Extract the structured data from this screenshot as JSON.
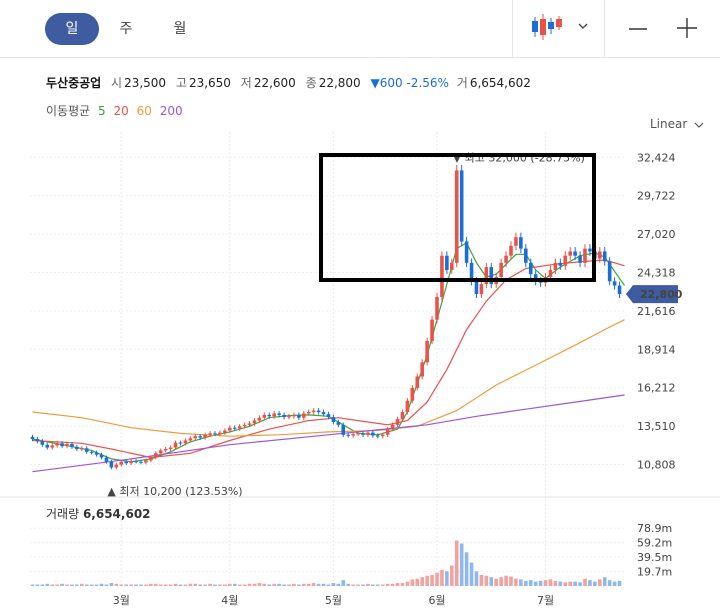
{
  "tabs": [
    {
      "label": "일",
      "active": true
    },
    {
      "label": "주",
      "active": false
    },
    {
      "label": "월",
      "active": false
    }
  ],
  "toolbar": {
    "chart_type_icon": "candlestick-icon",
    "dropdown_icon": "chevron-down-icon",
    "zoom_out_icon": "minus-icon",
    "zoom_in_icon": "plus-icon"
  },
  "stock": {
    "name": "두산중공업",
    "open_label": "시",
    "open": "23,500",
    "high_label": "고",
    "high": "23,650",
    "low_label": "저",
    "low": "22,600",
    "close_label": "종",
    "close": "22,800",
    "change": "▼600 -2.56%",
    "volume_label": "거",
    "volume": "6,654,602"
  },
  "ma_legend": {
    "label": "이동평균",
    "items": [
      {
        "name": "5",
        "color": "#3aa53a"
      },
      {
        "name": "20",
        "color": "#e8534a"
      },
      {
        "name": "60",
        "color": "#f39a3e"
      },
      {
        "name": "200",
        "color": "#9b57e0"
      }
    ]
  },
  "scale": {
    "label": "Linear",
    "icon": "chevron-down-icon"
  },
  "colors": {
    "up": "#e8534a",
    "down": "#1a6ed8",
    "accent": "#3e5c9f",
    "highlight": "#000000"
  },
  "chart_data": {
    "type": "candlestick",
    "ylim": [
      10000,
      33500
    ],
    "y_ticks": [
      "32,424",
      "29,722",
      "27,020",
      "24,318",
      "21,616",
      "18,914",
      "16,212",
      "13,510",
      "10,808"
    ],
    "y_tick_values": [
      32424,
      29722,
      27020,
      24318,
      21616,
      18914,
      16212,
      13510,
      10808
    ],
    "current_price_label": "22,800",
    "current_price": 22800,
    "x_labels": [
      "3월",
      "4월",
      "5월",
      "6월",
      "7월"
    ],
    "x_label_index": [
      18,
      40,
      61,
      82,
      104
    ],
    "max_annotation": "▼ 최고 32,000 (-28.75%)",
    "max_index": 86,
    "max_value": 32000,
    "min_annotation": "▲ 최저 10,200 (123.53%)",
    "min_index": 16,
    "min_value": 10200,
    "closes": [
      12600,
      12450,
      12200,
      12000,
      12150,
      12300,
      12100,
      12250,
      12050,
      11900,
      11950,
      11700,
      11650,
      11500,
      11300,
      11000,
      10600,
      10800,
      11000,
      10900,
      11050,
      11000,
      10950,
      11100,
      11300,
      11600,
      11800,
      11900,
      12000,
      12350,
      12300,
      12500,
      12650,
      12800,
      12700,
      12900,
      13000,
      12950,
      13050,
      13200,
      13400,
      13350,
      13500,
      13600,
      13700,
      13900,
      14100,
      14300,
      14200,
      14400,
      14300,
      14150,
      14200,
      14300,
      14100,
      14400,
      14500,
      14600,
      14500,
      14350,
      14150,
      13800,
      13600,
      12900,
      12850,
      12950,
      13000,
      12900,
      13050,
      12850,
      12800,
      12900,
      13300,
      13600,
      14000,
      14500,
      15300,
      16200,
      17000,
      18000,
      19500,
      21000,
      22600,
      25500,
      24500,
      25000,
      31500,
      26500,
      25000,
      23700,
      22800,
      23500,
      24700,
      23500,
      24000,
      25000,
      25500,
      26200,
      26800,
      26000,
      25000,
      24200,
      23700,
      23600,
      24000,
      24500,
      25000,
      24800,
      25500,
      25800,
      25500,
      25000,
      26000,
      25800,
      25300,
      25800,
      25100,
      23700,
      23400,
      22800
    ],
    "ma_curves": {
      "5": {
        "color": "#3aa53a",
        "points": [
          [
            0,
            12600
          ],
          [
            6,
            12200
          ],
          [
            12,
            11800
          ],
          [
            16,
            11200
          ],
          [
            20,
            11000
          ],
          [
            24,
            11200
          ],
          [
            28,
            11700
          ],
          [
            32,
            12400
          ],
          [
            36,
            12800
          ],
          [
            40,
            13100
          ],
          [
            44,
            13500
          ],
          [
            48,
            14100
          ],
          [
            52,
            14250
          ],
          [
            56,
            14300
          ],
          [
            60,
            14200
          ],
          [
            62,
            13800
          ],
          [
            66,
            13000
          ],
          [
            70,
            12900
          ],
          [
            74,
            13300
          ],
          [
            76,
            14500
          ],
          [
            78,
            16500
          ],
          [
            80,
            18500
          ],
          [
            82,
            21000
          ],
          [
            84,
            23500
          ],
          [
            86,
            26000
          ],
          [
            88,
            26400
          ],
          [
            90,
            25000
          ],
          [
            92,
            24000
          ],
          [
            94,
            24200
          ],
          [
            98,
            25600
          ],
          [
            100,
            25600
          ],
          [
            102,
            24500
          ],
          [
            104,
            23900
          ],
          [
            107,
            24700
          ],
          [
            111,
            25500
          ],
          [
            114,
            25700
          ],
          [
            116,
            25400
          ],
          [
            118,
            24400
          ],
          [
            120,
            23400
          ]
        ]
      },
      "20": {
        "color": "#e8534a",
        "points": [
          [
            0,
            12500
          ],
          [
            10,
            12300
          ],
          [
            16,
            11900
          ],
          [
            24,
            11300
          ],
          [
            32,
            11600
          ],
          [
            40,
            12500
          ],
          [
            48,
            13300
          ],
          [
            56,
            13900
          ],
          [
            62,
            14100
          ],
          [
            66,
            13900
          ],
          [
            72,
            13600
          ],
          [
            76,
            13900
          ],
          [
            80,
            15200
          ],
          [
            84,
            17500
          ],
          [
            88,
            20300
          ],
          [
            92,
            22300
          ],
          [
            96,
            23800
          ],
          [
            100,
            24600
          ],
          [
            106,
            24900
          ],
          [
            112,
            25100
          ],
          [
            116,
            25200
          ],
          [
            120,
            24800
          ]
        ]
      },
      "60": {
        "color": "#f39a3e",
        "points": [
          [
            0,
            14500
          ],
          [
            10,
            14100
          ],
          [
            20,
            13400
          ],
          [
            30,
            13000
          ],
          [
            40,
            12800
          ],
          [
            50,
            12900
          ],
          [
            60,
            13100
          ],
          [
            70,
            13200
          ],
          [
            78,
            13500
          ],
          [
            86,
            14600
          ],
          [
            94,
            16400
          ],
          [
            102,
            17800
          ],
          [
            110,
            19200
          ],
          [
            116,
            20300
          ],
          [
            120,
            21000
          ]
        ]
      },
      "200": {
        "color": "#9b57e0",
        "points": [
          [
            0,
            10300
          ],
          [
            20,
            11200
          ],
          [
            40,
            12200
          ],
          [
            60,
            12900
          ],
          [
            80,
            13600
          ],
          [
            90,
            14200
          ],
          [
            100,
            14700
          ],
          [
            110,
            15200
          ],
          [
            120,
            15700
          ]
        ]
      }
    },
    "volume_label": "거래량",
    "volume_value": "6,654,602",
    "volume_ticks": [
      "78.9m",
      "59.2m",
      "39.5m",
      "19.7m"
    ],
    "volume_tick_values": [
      78.9,
      59.2,
      39.5,
      19.7
    ],
    "volume_ylim": [
      0,
      90
    ],
    "volume_millions": [
      2,
      2,
      2,
      3,
      2,
      2,
      3,
      2,
      2,
      2,
      3,
      2,
      2,
      2,
      3,
      2,
      4,
      3,
      2,
      2,
      2,
      2,
      2,
      2,
      3,
      3,
      2,
      2,
      2,
      3,
      2,
      2,
      3,
      3,
      2,
      2,
      3,
      2,
      2,
      2,
      3,
      3,
      2,
      2,
      3,
      3,
      4,
      3,
      2,
      3,
      3,
      2,
      2,
      3,
      2,
      3,
      3,
      4,
      3,
      3,
      2,
      4,
      3,
      8,
      3,
      2,
      2,
      2,
      3,
      2,
      2,
      2,
      3,
      3,
      4,
      4,
      6,
      9,
      10,
      12,
      14,
      15,
      18,
      22,
      20,
      28,
      62,
      58,
      46,
      32,
      20,
      15,
      14,
      12,
      10,
      12,
      14,
      13,
      10,
      9,
      7,
      8,
      6,
      7,
      8,
      9,
      7,
      6,
      5,
      6,
      6,
      5,
      10,
      8,
      6,
      9,
      12,
      8,
      6,
      7
    ]
  },
  "highlight_box": {
    "label": ""
  }
}
